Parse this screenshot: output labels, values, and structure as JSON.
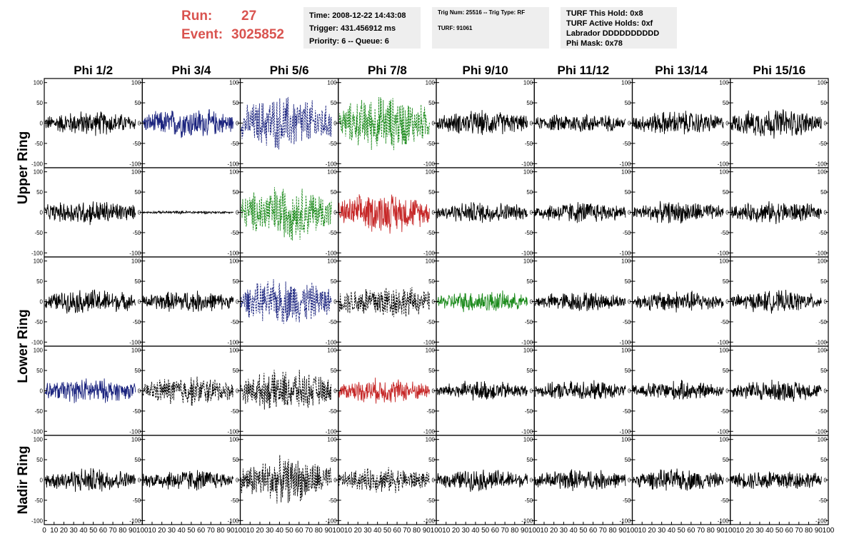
{
  "header": {
    "run_label": "Run:",
    "run_value": "27",
    "event_label": "Event:",
    "event_value": "3025852",
    "label_color": "#d9534f"
  },
  "info_time": {
    "lines": [
      "Time: 2008-12-22 14:43:08",
      "Trigger: 431.456912 ms",
      "Priority: 6 -- Queue: 6"
    ]
  },
  "info_trigger": {
    "lines": [
      "Trig Num: 25516 -- Trig Type: RF",
      "TURF: 91061"
    ]
  },
  "info_turf": {
    "lines": [
      "TURF This Hold: 0x8",
      "TURF Active Holds: 0xf",
      "Labrador DDDDDDDDDD",
      "Phi Mask: 0x78"
    ]
  },
  "chart_data": {
    "type": "line",
    "columns": [
      "Phi 1/2",
      "Phi 3/4",
      "Phi 5/6",
      "Phi 7/8",
      "Phi 9/10",
      "Phi 11/12",
      "Phi 13/14",
      "Phi 15/16"
    ],
    "ring_labels": [
      "Upper Ring",
      "Lower Ring",
      "Nadir Ring"
    ],
    "rows": 5,
    "row_ring": [
      0,
      0,
      1,
      1,
      2
    ],
    "xlim": [
      0,
      100
    ],
    "ylim": [
      -110,
      110
    ],
    "yticks": [
      -100,
      -50,
      0,
      50,
      100
    ],
    "xticks": [
      0,
      10,
      20,
      30,
      40,
      50,
      60,
      70,
      80,
      90,
      100
    ],
    "colors": {
      "black": "#000000",
      "blue": "#1a237e",
      "green": "#1b8a1b",
      "red": "#c62828"
    },
    "panels": [
      [
        "black",
        "blue",
        "blue-dashed",
        "green-dashed",
        "black",
        "black",
        "black",
        "black"
      ],
      [
        "black",
        "black",
        "green-dashed",
        "red",
        "black",
        "black",
        "black",
        "black"
      ],
      [
        "black",
        "black",
        "blue-dashed",
        "black-dashed",
        "green",
        "black",
        "black",
        "black"
      ],
      [
        "blue",
        "black-dashed",
        "black-dashed",
        "red",
        "black",
        "black",
        "black",
        "black"
      ],
      [
        "black",
        "black",
        "black-dashed",
        "black-dashed",
        "black",
        "black",
        "black",
        "black"
      ]
    ],
    "amplitudes": [
      [
        25,
        30,
        55,
        55,
        25,
        20,
        25,
        30
      ],
      [
        25,
        3,
        55,
        40,
        22,
        22,
        22,
        22
      ],
      [
        25,
        22,
        45,
        35,
        22,
        20,
        22,
        22
      ],
      [
        25,
        30,
        40,
        25,
        20,
        20,
        20,
        22
      ],
      [
        25,
        22,
        45,
        25,
        22,
        22,
        22,
        22
      ]
    ],
    "note_columns": "Each panel shows a waveform (amplitude vs time index)"
  }
}
